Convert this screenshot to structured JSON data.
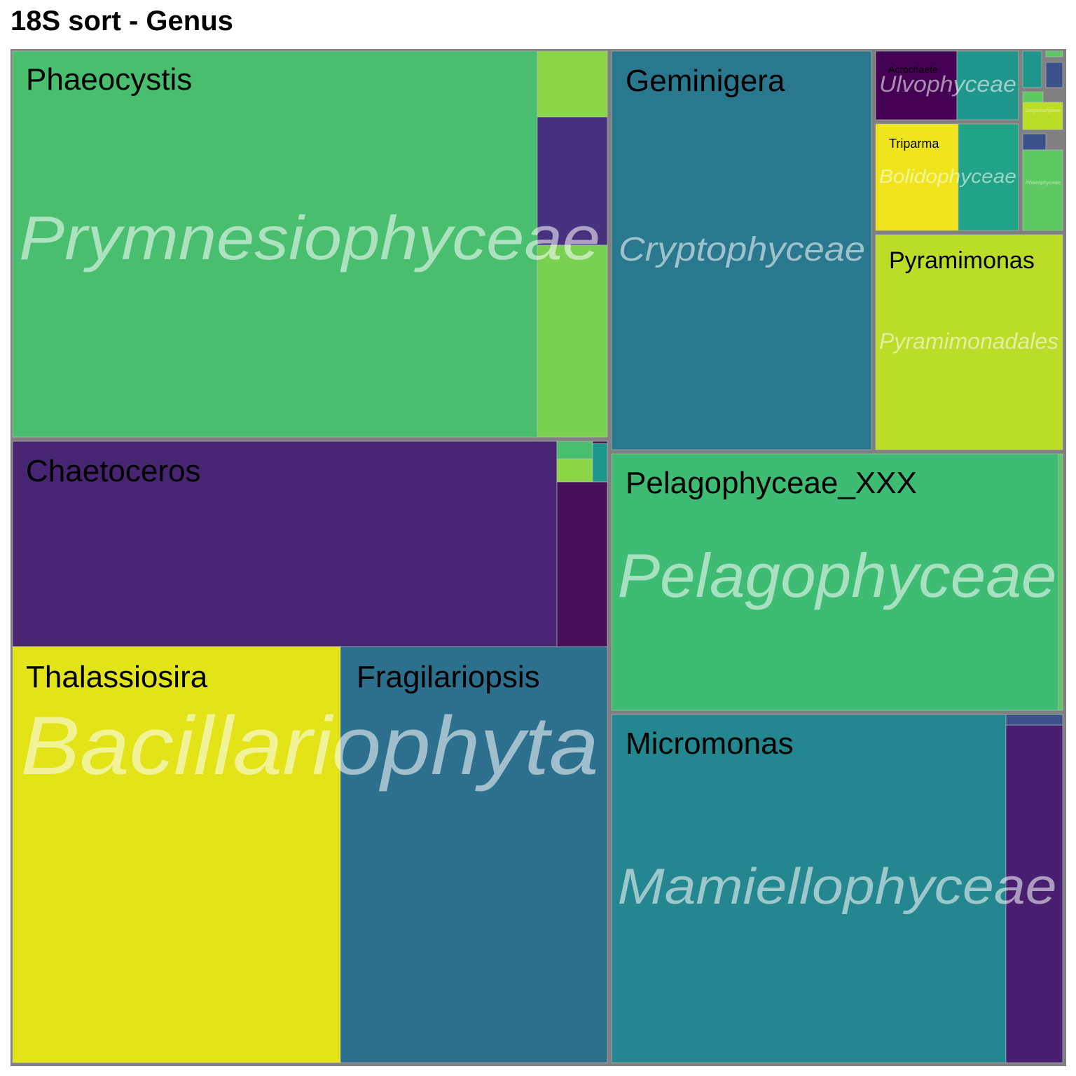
{
  "chart_data": {
    "type": "treemap",
    "title": "18S sort - Genus",
    "border_color": "#808080",
    "groups": [
      {
        "label": "Prymnesiophyceae",
        "genera": [
          {
            "label": "Phaeocystis",
            "color": "#48be6e"
          },
          {
            "label": "",
            "color": "#8bd646"
          },
          {
            "label": "",
            "color": "#46327e"
          },
          {
            "label": "",
            "color": "#7ad151"
          }
        ]
      },
      {
        "label": "Bacillariophyta",
        "genera": [
          {
            "label": "Chaetoceros",
            "color": "#472573"
          },
          {
            "label": "Thalassiosira",
            "color": "#e3e418"
          },
          {
            "label": "Fragilariopsis",
            "color": "#2d708e"
          },
          {
            "label": "",
            "color": "#48be6e"
          },
          {
            "label": "",
            "color": "#8bd646"
          },
          {
            "label": "",
            "color": "#1f968b"
          },
          {
            "label": "",
            "color": "#440d5c"
          },
          {
            "label": "",
            "color": "#451058"
          }
        ]
      },
      {
        "label": "Cryptophyceae",
        "genera": [
          {
            "label": "Geminigera",
            "color": "#29788e"
          }
        ]
      },
      {
        "label": "Pelagophyceae",
        "genera": [
          {
            "label": "Pelagophyceae_XXX",
            "color": "#3fbc73"
          },
          {
            "label": "",
            "color": "#5ec962"
          }
        ]
      },
      {
        "label": "Mamiellophyceae",
        "genera": [
          {
            "label": "Micromonas",
            "color": "#24868e"
          },
          {
            "label": "",
            "color": "#481f70"
          },
          {
            "label": "",
            "color": "#3b528b"
          }
        ]
      },
      {
        "label": "Ulvophyceae",
        "genera": [
          {
            "label": "Acrochaete",
            "color": "#440154"
          },
          {
            "label": "",
            "color": "#1f968b"
          }
        ]
      },
      {
        "label": "Bolidophyceae",
        "genera": [
          {
            "label": "Triparma",
            "color": "#efe51c"
          },
          {
            "label": "",
            "color": "#20a386"
          }
        ]
      },
      {
        "label": "Pyramimonadales",
        "genera": [
          {
            "label": "Pyramimonas",
            "color": "#bade28"
          }
        ]
      },
      {
        "label": "",
        "genera": [
          {
            "label": "",
            "color": "#1f968b"
          }
        ]
      },
      {
        "label": "",
        "genera": [
          {
            "label": "",
            "color": "#5ec962"
          },
          {
            "label": "",
            "color": "#3b528b"
          }
        ]
      },
      {
        "label": "Dictyochophyceae",
        "genera": [
          {
            "label": "",
            "color": "#5ec962"
          },
          {
            "label": "",
            "color": "#bade28"
          }
        ]
      },
      {
        "label": "Phaeophyceae",
        "genera": [
          {
            "label": "",
            "color": "#3b528b"
          },
          {
            "label": "",
            "color": "#5ec962"
          }
        ]
      }
    ]
  }
}
